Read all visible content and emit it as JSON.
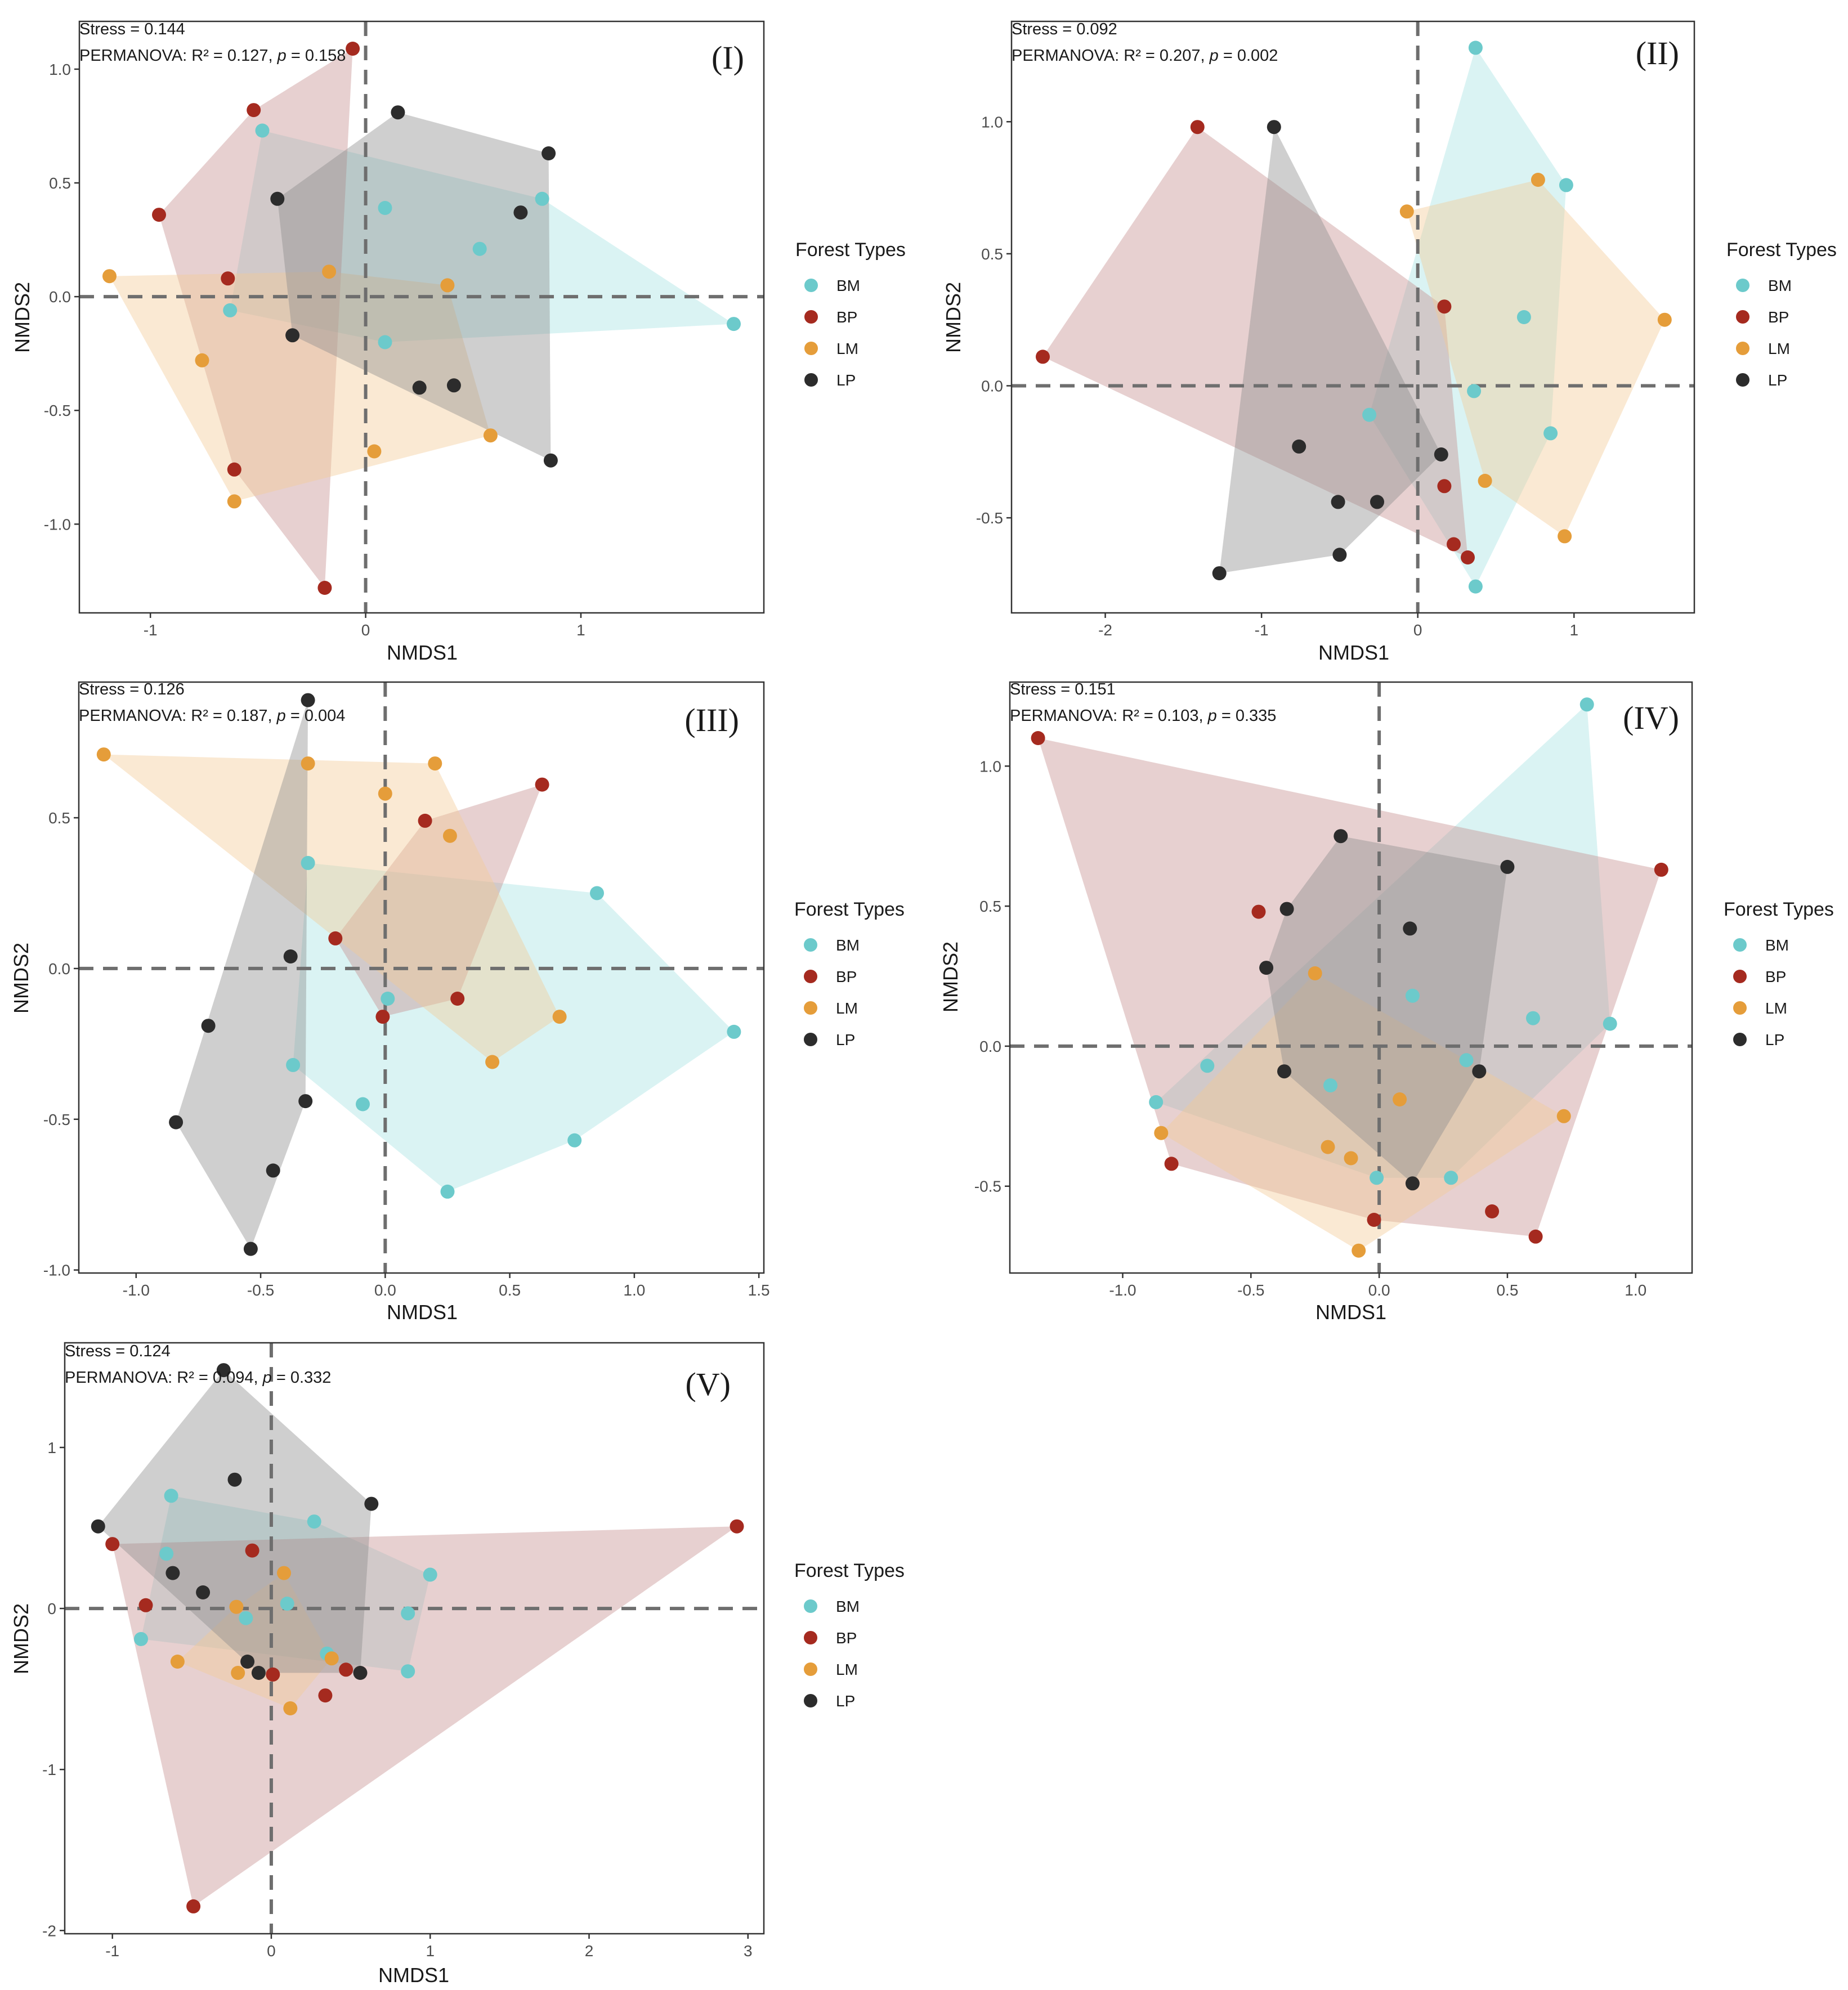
{
  "figure": {
    "legend_title": "Forest Types",
    "groups": [
      "BM",
      "BP",
      "LM",
      "LP"
    ],
    "colors": {
      "BM": "#6ccacb",
      "BP": "#a52a1f",
      "LM": "#e59d3a",
      "LP": "#2c2c2c"
    },
    "hull_colors": {
      "BM": "#a8e2e2",
      "BP": "#c58e8e",
      "LM": "#f4cb95",
      "LP": "#8c8c8c"
    }
  },
  "chart_data": [
    {
      "type": "scatter",
      "panel_label": "(I)",
      "xlabel": "NMDS1",
      "ylabel": "NMDS2",
      "xlim": [
        -1.33,
        1.85
      ],
      "ylim": [
        -1.39,
        1.21
      ],
      "xticks": [
        -1,
        0,
        1
      ],
      "yticks": [
        -1.0,
        -0.5,
        0.0,
        0.5,
        1.0
      ],
      "stress_text": "Stress = 0.144",
      "permanova": {
        "prefix": "PERMANOVA: R² = 0.127, ",
        "p_label": "p",
        "suffix": " = 0.158"
      },
      "series": [
        {
          "name": "BM",
          "points": [
            [
              -0.48,
              0.73
            ],
            [
              0.09,
              0.39
            ],
            [
              0.53,
              0.21
            ],
            [
              0.82,
              0.43
            ],
            [
              1.71,
              -0.12
            ],
            [
              -0.63,
              -0.06
            ],
            [
              0.09,
              -0.2
            ]
          ]
        },
        {
          "name": "BP",
          "points": [
            [
              -0.06,
              1.09
            ],
            [
              -0.52,
              0.82
            ],
            [
              -0.96,
              0.36
            ],
            [
              -0.64,
              0.08
            ],
            [
              -0.61,
              -0.76
            ],
            [
              -0.19,
              -1.28
            ]
          ]
        },
        {
          "name": "LM",
          "points": [
            [
              -1.19,
              0.09
            ],
            [
              -0.76,
              -0.28
            ],
            [
              -0.61,
              -0.9
            ],
            [
              -0.17,
              0.11
            ],
            [
              0.38,
              0.05
            ],
            [
              0.04,
              -0.68
            ],
            [
              0.58,
              -0.61
            ]
          ]
        },
        {
          "name": "LP",
          "points": [
            [
              0.15,
              0.81
            ],
            [
              0.85,
              0.63
            ],
            [
              -0.41,
              0.43
            ],
            [
              0.72,
              0.37
            ],
            [
              -0.34,
              -0.17
            ],
            [
              0.25,
              -0.4
            ],
            [
              0.41,
              -0.39
            ],
            [
              0.86,
              -0.72
            ]
          ]
        }
      ]
    },
    {
      "type": "scatter",
      "panel_label": "(II)",
      "xlabel": "NMDS1",
      "ylabel": "NMDS2",
      "xlim": [
        -2.6,
        1.77
      ],
      "ylim": [
        -0.86,
        1.38
      ],
      "xticks": [
        -2,
        -1,
        0,
        1
      ],
      "yticks": [
        -0.5,
        0.0,
        0.5,
        1.0
      ],
      "stress_text": "Stress = 0.092",
      "permanova": {
        "prefix": "PERMANOVA: R² = 0.207, ",
        "p_label": "p",
        "suffix": " = 0.002"
      },
      "series": [
        {
          "name": "BM",
          "points": [
            [
              0.37,
              1.28
            ],
            [
              0.95,
              0.76
            ],
            [
              0.68,
              0.26
            ],
            [
              0.36,
              -0.02
            ],
            [
              0.85,
              -0.18
            ],
            [
              -0.31,
              -0.11
            ],
            [
              0.37,
              -0.76
            ]
          ]
        },
        {
          "name": "BP",
          "points": [
            [
              -1.41,
              0.98
            ],
            [
              -2.4,
              0.11
            ],
            [
              0.17,
              0.3
            ],
            [
              0.17,
              -0.38
            ],
            [
              0.23,
              -0.6
            ],
            [
              0.32,
              -0.65
            ]
          ]
        },
        {
          "name": "LM",
          "points": [
            [
              0.77,
              0.78
            ],
            [
              -0.07,
              0.66
            ],
            [
              1.58,
              0.25
            ],
            [
              0.43,
              -0.36
            ],
            [
              0.94,
              -0.57
            ]
          ]
        },
        {
          "name": "LP",
          "points": [
            [
              -0.92,
              0.98
            ],
            [
              -0.76,
              -0.23
            ],
            [
              -0.51,
              -0.44
            ],
            [
              -0.26,
              -0.44
            ],
            [
              0.15,
              -0.26
            ],
            [
              -0.5,
              -0.64
            ],
            [
              -1.27,
              -0.71
            ]
          ]
        }
      ]
    },
    {
      "type": "scatter",
      "panel_label": "(III)",
      "xlabel": "NMDS1",
      "ylabel": "NMDS2",
      "xlim": [
        -1.23,
        1.52
      ],
      "ylim": [
        -1.01,
        0.95
      ],
      "xticks": [
        -1.0,
        -0.5,
        0.0,
        0.5,
        1.0,
        1.5
      ],
      "yticks": [
        -1.0,
        -0.5,
        0.0,
        0.5
      ],
      "stress_text": "Stress = 0.126",
      "permanova": {
        "prefix": "PERMANOVA: R² = 0.187, ",
        "p_label": "p",
        "suffix": " = 0.004"
      },
      "series": [
        {
          "name": "BM",
          "points": [
            [
              -0.31,
              0.35
            ],
            [
              0.85,
              0.25
            ],
            [
              1.4,
              -0.21
            ],
            [
              0.01,
              -0.1
            ],
            [
              -0.37,
              -0.32
            ],
            [
              -0.09,
              -0.45
            ],
            [
              0.76,
              -0.57
            ],
            [
              0.25,
              -0.74
            ]
          ]
        },
        {
          "name": "BP",
          "points": [
            [
              0.63,
              0.61
            ],
            [
              0.16,
              0.49
            ],
            [
              -0.2,
              0.1
            ],
            [
              -0.01,
              -0.16
            ],
            [
              0.29,
              -0.1
            ]
          ]
        },
        {
          "name": "LM",
          "points": [
            [
              -1.13,
              0.71
            ],
            [
              -0.31,
              0.68
            ],
            [
              0.2,
              0.68
            ],
            [
              0.0,
              0.58
            ],
            [
              0.26,
              0.44
            ],
            [
              0.7,
              -0.16
            ],
            [
              0.43,
              -0.31
            ]
          ]
        },
        {
          "name": "LP",
          "points": [
            [
              -0.31,
              0.89
            ],
            [
              -0.38,
              0.04
            ],
            [
              -0.71,
              -0.19
            ],
            [
              -0.84,
              -0.51
            ],
            [
              -0.32,
              -0.44
            ],
            [
              -0.45,
              -0.67
            ],
            [
              -0.54,
              -0.93
            ]
          ]
        }
      ]
    },
    {
      "type": "scatter",
      "panel_label": "(IV)",
      "xlabel": "NMDS1",
      "ylabel": "NMDS2",
      "xlim": [
        -1.44,
        1.22
      ],
      "ylim": [
        -0.81,
        1.3
      ],
      "xticks": [
        -1.0,
        -0.5,
        0.0,
        0.5,
        1.0
      ],
      "yticks": [
        -0.5,
        0.0,
        0.5,
        1.0
      ],
      "stress_text": "Stress = 0.151",
      "permanova": {
        "prefix": "PERMANOVA: R² = 0.103, ",
        "p_label": "p",
        "suffix": " = 0.335"
      },
      "series": [
        {
          "name": "BM",
          "points": [
            [
              0.81,
              1.22
            ],
            [
              0.13,
              0.18
            ],
            [
              0.6,
              0.1
            ],
            [
              0.9,
              0.08
            ],
            [
              0.34,
              -0.05
            ],
            [
              -0.67,
              -0.07
            ],
            [
              -0.19,
              -0.14
            ],
            [
              -0.87,
              -0.2
            ],
            [
              -0.01,
              -0.47
            ],
            [
              0.28,
              -0.47
            ]
          ]
        },
        {
          "name": "BP",
          "points": [
            [
              -1.33,
              1.1
            ],
            [
              1.1,
              0.63
            ],
            [
              -0.47,
              0.48
            ],
            [
              -0.81,
              -0.42
            ],
            [
              -0.02,
              -0.62
            ],
            [
              0.44,
              -0.59
            ],
            [
              0.61,
              -0.68
            ]
          ]
        },
        {
          "name": "LM",
          "points": [
            [
              -0.25,
              0.26
            ],
            [
              0.08,
              -0.19
            ],
            [
              -0.85,
              -0.31
            ],
            [
              -0.2,
              -0.36
            ],
            [
              -0.11,
              -0.4
            ],
            [
              0.72,
              -0.25
            ],
            [
              -0.08,
              -0.73
            ]
          ]
        },
        {
          "name": "LP",
          "points": [
            [
              -0.15,
              0.75
            ],
            [
              0.5,
              0.64
            ],
            [
              -0.36,
              0.49
            ],
            [
              0.12,
              0.42
            ],
            [
              -0.44,
              0.28
            ],
            [
              -0.37,
              -0.09
            ],
            [
              0.39,
              -0.09
            ],
            [
              0.13,
              -0.49
            ]
          ]
        }
      ]
    },
    {
      "type": "scatter",
      "panel_label": "(V)",
      "xlabel": "NMDS1",
      "ylabel": "NMDS2",
      "xlim": [
        -1.3,
        3.1
      ],
      "ylim": [
        -2.02,
        1.65
      ],
      "xticks": [
        -1,
        0,
        1,
        2,
        3
      ],
      "yticks": [
        -2,
        -1,
        0,
        1
      ],
      "stress_text": "Stress = 0.124",
      "permanova": {
        "prefix": "PERMANOVA: R² = 0.094, ",
        "p_label": "p",
        "suffix": " = 0.332"
      },
      "series": [
        {
          "name": "BM",
          "points": [
            [
              -0.63,
              0.7
            ],
            [
              0.27,
              0.54
            ],
            [
              -0.66,
              0.34
            ],
            [
              1.0,
              0.21
            ],
            [
              -0.82,
              -0.19
            ],
            [
              0.1,
              0.03
            ],
            [
              -0.16,
              -0.06
            ],
            [
              0.86,
              -0.03
            ],
            [
              0.35,
              -0.28
            ],
            [
              0.86,
              -0.39
            ]
          ]
        },
        {
          "name": "BP",
          "points": [
            [
              2.93,
              0.51
            ],
            [
              -1.0,
              0.4
            ],
            [
              -0.12,
              0.36
            ],
            [
              -0.79,
              0.02
            ],
            [
              0.47,
              -0.38
            ],
            [
              0.01,
              -0.41
            ],
            [
              0.34,
              -0.54
            ],
            [
              -0.49,
              -1.85
            ]
          ]
        },
        {
          "name": "LM",
          "points": [
            [
              0.08,
              0.22
            ],
            [
              -0.22,
              0.01
            ],
            [
              -0.59,
              -0.33
            ],
            [
              -0.21,
              -0.4
            ],
            [
              0.38,
              -0.31
            ],
            [
              0.12,
              -0.62
            ]
          ]
        },
        {
          "name": "LP",
          "points": [
            [
              -0.3,
              1.48
            ],
            [
              -0.23,
              0.8
            ],
            [
              0.63,
              0.65
            ],
            [
              -1.09,
              0.51
            ],
            [
              -0.62,
              0.22
            ],
            [
              -0.43,
              0.1
            ],
            [
              -0.15,
              -0.33
            ],
            [
              -0.08,
              -0.4
            ],
            [
              0.56,
              -0.4
            ]
          ]
        }
      ]
    }
  ]
}
